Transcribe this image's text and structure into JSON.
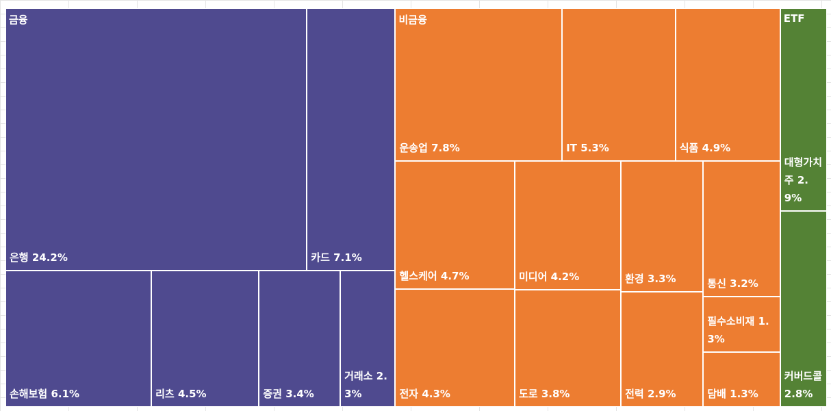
{
  "chart_data": {
    "type": "treemap",
    "groups": [
      {
        "name": "금융",
        "color": "#4f4a8f",
        "categories": [
          "은행",
          "카드",
          "손해보험",
          "리츠",
          "증권",
          "거래소"
        ],
        "values": [
          24.2,
          7.1,
          6.1,
          4.5,
          3.4,
          2.3
        ],
        "value_labels": [
          "24.2%",
          "7.1%",
          "6.1%",
          "4.5%",
          "3.4%",
          "2.3%"
        ]
      },
      {
        "name": "비금융",
        "color": "#ed7d31",
        "categories": [
          "운송업",
          "IT",
          "식품",
          "헬스케어",
          "미디어",
          "환경",
          "통신",
          "전자",
          "도로",
          "전력",
          "필수소비재",
          "담배"
        ],
        "values": [
          7.8,
          5.3,
          4.9,
          4.7,
          4.2,
          3.3,
          3.2,
          4.3,
          3.8,
          2.9,
          1.3,
          1.3
        ],
        "value_labels": [
          "7.8%",
          "5.3%",
          "4.9%",
          "4.7%",
          "4.2%",
          "3.3%",
          "3.2%",
          "4.3%",
          "3.8%",
          "2.9%",
          "1.3%",
          "1.3%"
        ]
      },
      {
        "name": "ETF",
        "color": "#548235",
        "categories": [
          "대형가치주",
          "커버드콜"
        ],
        "values": [
          2.9,
          2.8
        ],
        "value_labels": [
          "2.9%",
          "2.8%"
        ]
      }
    ]
  }
}
